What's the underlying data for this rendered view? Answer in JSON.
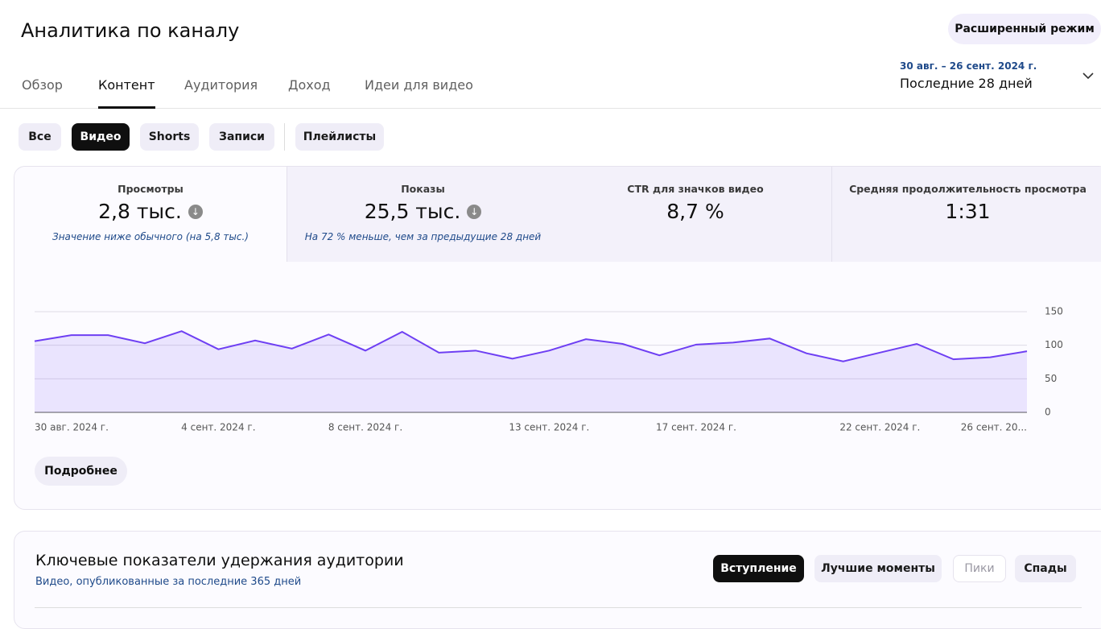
{
  "header": {
    "title": "Аналитика по каналу",
    "mode_button": "Расширенный режим"
  },
  "tabs": [
    "Обзор",
    "Контент",
    "Аудитория",
    "Доход",
    "Идеи для видео"
  ],
  "active_tab": 1,
  "date_range": {
    "dates": "30 авг. – 26 сент. 2024 г.",
    "label": "Последние 28 дней"
  },
  "filters": [
    "Все",
    "Видео",
    "Shorts",
    "Записи",
    "Плейлисты"
  ],
  "active_filter": 1,
  "metrics": [
    {
      "label": "Просмотры",
      "value": "2,8 тыс.",
      "down_icon": true,
      "note": "Значение ниже обычного (на 5,8 тыс.)"
    },
    {
      "label": "Показы",
      "value": "25,5 тыс.",
      "down_icon": true,
      "note": "На 72 % меньше, чем за предыдущие 28 дней"
    },
    {
      "label": "CTR для значков видео",
      "value": "8,7 %"
    },
    {
      "label": "Средняя продолжительность просмотра",
      "value": "1:31"
    }
  ],
  "chart_data": {
    "type": "area",
    "categories": [
      "30 авг. 2024 г.",
      null,
      null,
      null,
      null,
      "4 сент. 2024 г.",
      null,
      null,
      null,
      "8 сент. 2024 г.",
      null,
      null,
      null,
      null,
      "13 сент. 2024 г.",
      null,
      null,
      null,
      "17 сент. 2024 г.",
      null,
      null,
      null,
      null,
      "22 сент. 2024 г.",
      null,
      null,
      null,
      "26 сент. 20..."
    ],
    "values": [
      106,
      115,
      115,
      103,
      121,
      94,
      107,
      95,
      116,
      92,
      120,
      89,
      92,
      80,
      92,
      109,
      102,
      85,
      101,
      104,
      110,
      88,
      76,
      89,
      102,
      79,
      82,
      91
    ],
    "color": "#6e3ff3",
    "ylim": [
      0,
      150
    ],
    "yticks": [
      0,
      50,
      100,
      150
    ],
    "grid": true
  },
  "more_button": "Подробнее",
  "retention": {
    "title": "Ключевые показатели удержания аудитории",
    "subtitle": "Видео, опубликованные за последние 365 дней",
    "buttons": [
      "Вступление",
      "Лучшие моменты",
      "Пики",
      "Спады"
    ],
    "active_button": 0,
    "disabled_button": 2
  }
}
